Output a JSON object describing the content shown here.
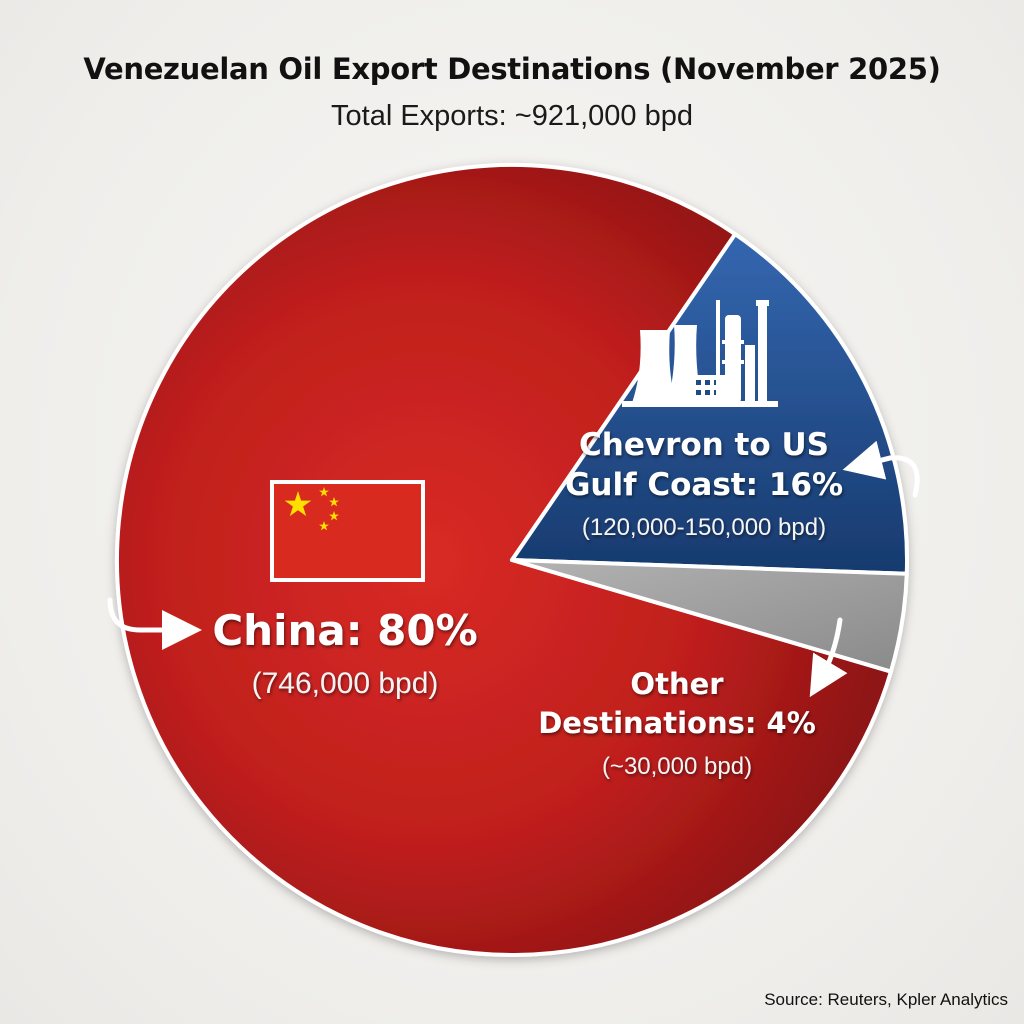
{
  "chart_data": {
    "type": "pie",
    "title": "Venezuelan Oil Export Destinations (November 2025)",
    "subtitle": "Total Exports: ~921,000 bpd",
    "slices": [
      {
        "name": "China",
        "label": "China: 80%",
        "value": 80,
        "detail": "(746,000 bpd)",
        "color": "#c3201f",
        "icon": "china-flag"
      },
      {
        "name": "Chevron to US Gulf Coast",
        "label_line1": "Chevron to US",
        "label_line2": "Gulf Coast: 16%",
        "value": 16,
        "detail": "(120,000-150,000 bpd)",
        "color": "#1e4a86",
        "icon": "refinery-icon"
      },
      {
        "name": "Other Destinations",
        "label_line1": "Other",
        "label_line2": "Destinations: 4%",
        "value": 4,
        "detail": "(~30,000 bpd)",
        "color": "#9a9a9a"
      }
    ],
    "source": "Source: Reuters, Kpler Analytics"
  }
}
